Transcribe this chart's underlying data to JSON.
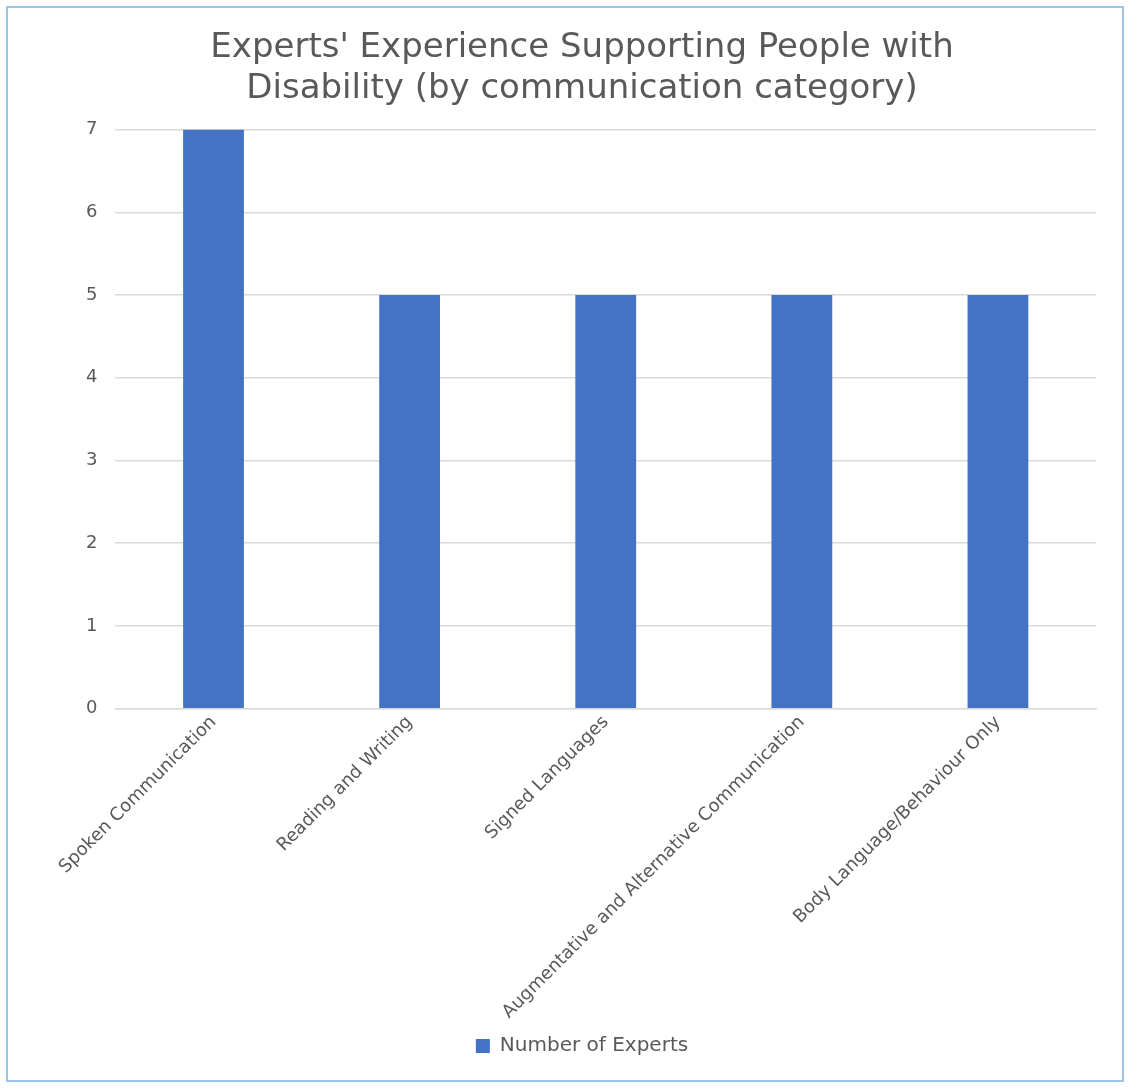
{
  "chart_data": {
    "type": "bar",
    "title": "Experts' Experience Supporting People with Disability (by communication category)",
    "categories": [
      "Spoken Communication",
      "Reading and Writing",
      "Signed Languages",
      "Augmentative and Alternative Communication",
      "Body Language/Behaviour Only"
    ],
    "series": [
      {
        "name": "Number of Experts",
        "color": "#4472c4",
        "values": [
          7,
          5,
          5,
          5,
          5
        ]
      }
    ],
    "ylim": [
      0,
      7
    ],
    "yticks": [
      0,
      1,
      2,
      3,
      4,
      5,
      6,
      7
    ],
    "grid": "y",
    "legend": "bottom"
  }
}
